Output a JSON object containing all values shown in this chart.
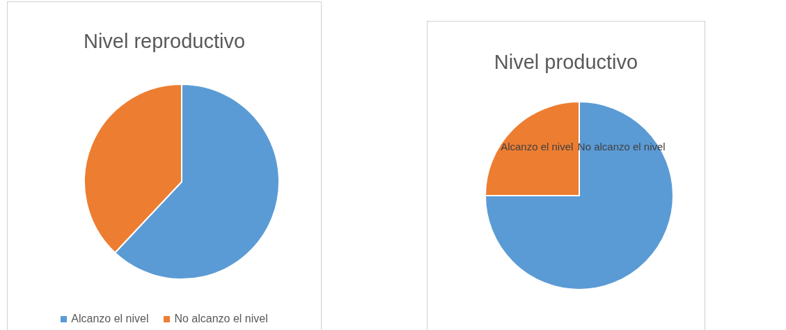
{
  "chart_data": [
    {
      "type": "pie",
      "title": "Nivel reproductivo",
      "categories": [
        "Alcanzo el nivel",
        "No alcanzo el nivel"
      ],
      "values": [
        62,
        38
      ],
      "colors": [
        "#5b9bd5",
        "#ed7d31"
      ],
      "legend": "bottom"
    },
    {
      "type": "pie",
      "title": "Nivel productivo",
      "categories": [
        "No alcanzo el nivel",
        "Alcanzo el nivel"
      ],
      "values": [
        75,
        25
      ],
      "colors": [
        "#5b9bd5",
        "#ed7d31"
      ],
      "legend": false
    }
  ]
}
